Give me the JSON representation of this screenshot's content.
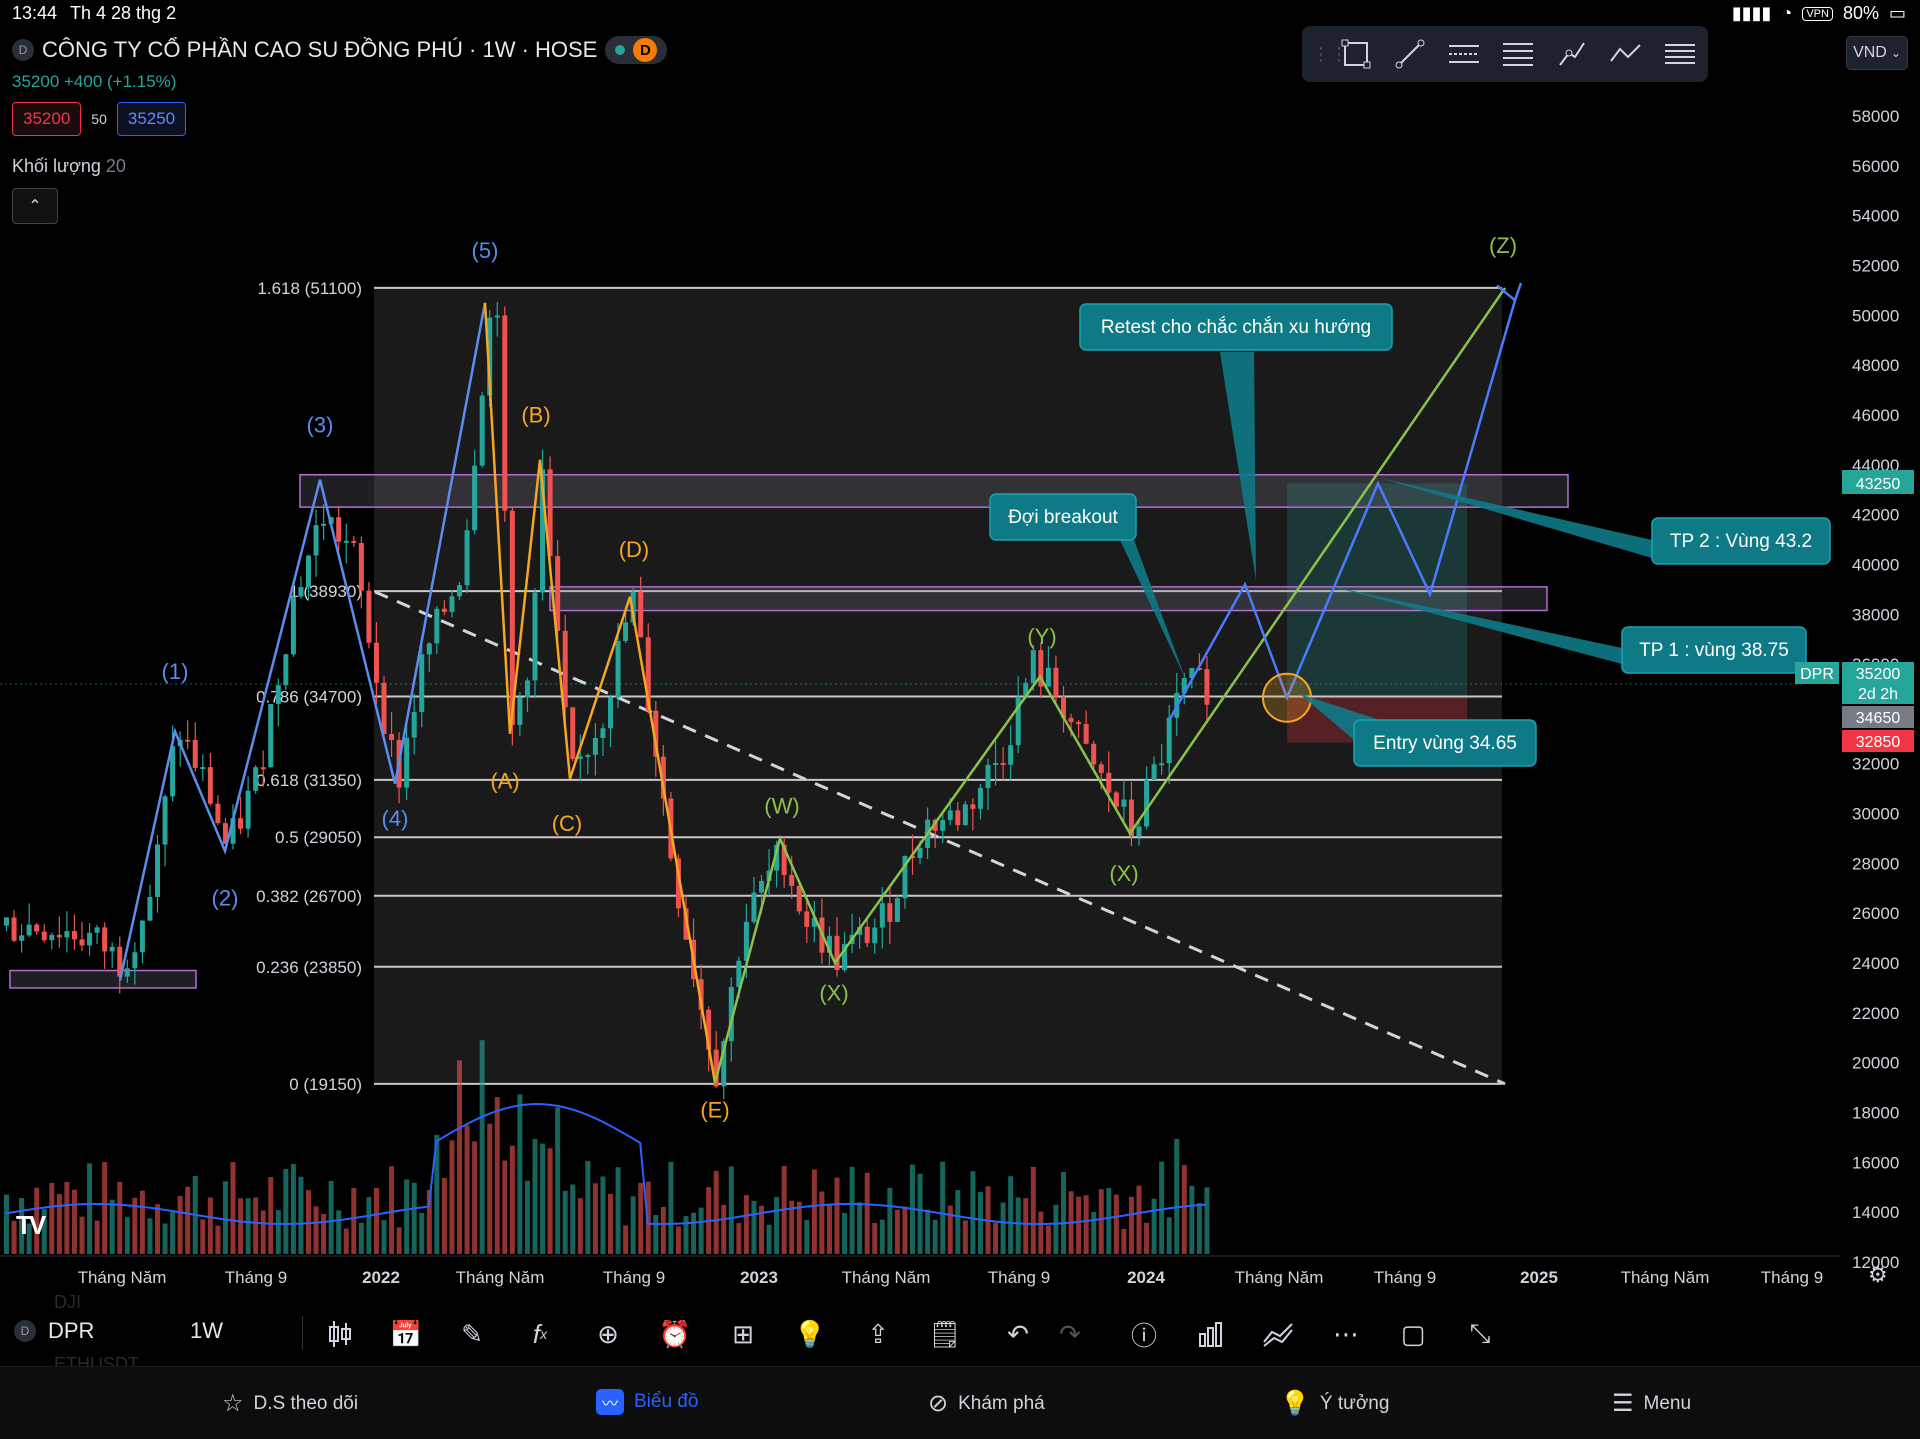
{
  "status_bar": {
    "time": "13:44",
    "date": "Th 4 28 thg 2",
    "vpn": "VPN",
    "battery": "80%"
  },
  "header": {
    "symbol_badge": "D",
    "title": "CÔNG TY CỔ PHẦN CAO SU ĐỒNG PHÚ · 1W · HOSE",
    "session_badge": "D",
    "price_change": "35200 +400 (+1.15%)",
    "bid": "35200",
    "spread": "50",
    "ask": "35250",
    "volume_label": "Khối lượng",
    "volume_length": "20",
    "collapse_icon": "chevron-up-icon"
  },
  "currency": "VND",
  "drawing_tools": [
    "rectangle-icon",
    "trend-line-icon",
    "parallel-channel-icon",
    "fib-retracement-icon",
    "path-icon",
    "polyline-icon",
    "menu-lines-icon"
  ],
  "colors": {
    "up": "#26a69a",
    "down": "#ef5350",
    "elliott_blue": "#5b8def",
    "abc_orange": "#f5a623",
    "wxy_green": "#8bc34a",
    "callout": "#0e7a86",
    "fib_line": "#c8c8c8",
    "zone_border": "#b070d0"
  },
  "chart_data": {
    "type": "candlestick",
    "symbol": "DPR",
    "interval": "1W",
    "ylim": [
      11000,
      60000
    ],
    "y_ticks": [
      12000,
      14000,
      16000,
      18000,
      20000,
      22000,
      24000,
      26000,
      28000,
      30000,
      32000,
      34000,
      36000,
      38000,
      40000,
      42000,
      44000,
      46000,
      48000,
      50000,
      52000,
      54000,
      56000,
      58000
    ],
    "x_ticks": [
      "Tháng Năm",
      "Tháng 9",
      "2022",
      "Tháng Năm",
      "Tháng 9",
      "2023",
      "Tháng Năm",
      "Tháng 9",
      "2024",
      "Tháng Năm",
      "Tháng 9",
      "2025",
      "Tháng Năm",
      "Tháng 9"
    ],
    "price_labels": [
      {
        "text": "43250",
        "value": 43250,
        "color": "#26a69a"
      },
      {
        "text": "DPR",
        "value": 35200,
        "color": "#26a69a"
      },
      {
        "text": "35200",
        "value": 35200,
        "color": "#26a69a"
      },
      {
        "text": "2d 2h",
        "value": 35200,
        "color": "#26a69a"
      },
      {
        "text": "34650",
        "value": 34650,
        "color": "#787b86"
      },
      {
        "text": "32850",
        "value": 32850,
        "color": "#f23645"
      }
    ],
    "fib_levels": [
      {
        "label": "1.618 (51100)",
        "value": 51100
      },
      {
        "label": "1 (38930)",
        "value": 38930
      },
      {
        "label": "0.786 (34700)",
        "value": 34700
      },
      {
        "label": "0.618 (31350)",
        "value": 31350
      },
      {
        "label": "0.5 (29050)",
        "value": 29050
      },
      {
        "label": "0.382 (26700)",
        "value": 26700
      },
      {
        "label": "0.236 (23850)",
        "value": 23850
      },
      {
        "label": "0 (19150)",
        "value": 19150
      }
    ],
    "wave_labels": [
      "(1)",
      "(2)",
      "(3)",
      "(4)",
      "(5)",
      "(A)",
      "(B)",
      "(C)",
      "(D)",
      "(E)",
      "(W)",
      "(X)",
      "(Y)",
      "(X)",
      "(Z)"
    ],
    "callouts": [
      "Retest cho chắc chắn xu hướng",
      "Đợi breakout",
      "TP 2 : Vùng 43.2",
      "TP 1 : vùng 38.75",
      "Entry vùng 34.65"
    ]
  },
  "bottom_toolbar": {
    "symbol_badge": "D",
    "symbol": "DPR",
    "interval": "1W",
    "ghost_top": "DJI",
    "ghost_bottom": "ETHUSDT",
    "icons": [
      "candles-icon",
      "replay-icon",
      "brush-icon",
      "fx-icon",
      "add-icon",
      "alarm-icon",
      "grid-icon",
      "bulb-icon",
      "share-icon",
      "note-icon",
      "undo-icon",
      "redo-icon",
      "info-icon",
      "bars-icon",
      "compare-icon",
      "more-icon",
      "fullscreen-square-icon",
      "expand-icon"
    ]
  },
  "nav": [
    "D.S theo dõi",
    "Biểu đồ",
    "Khám phá",
    "Ý tưởng",
    "Menu"
  ]
}
